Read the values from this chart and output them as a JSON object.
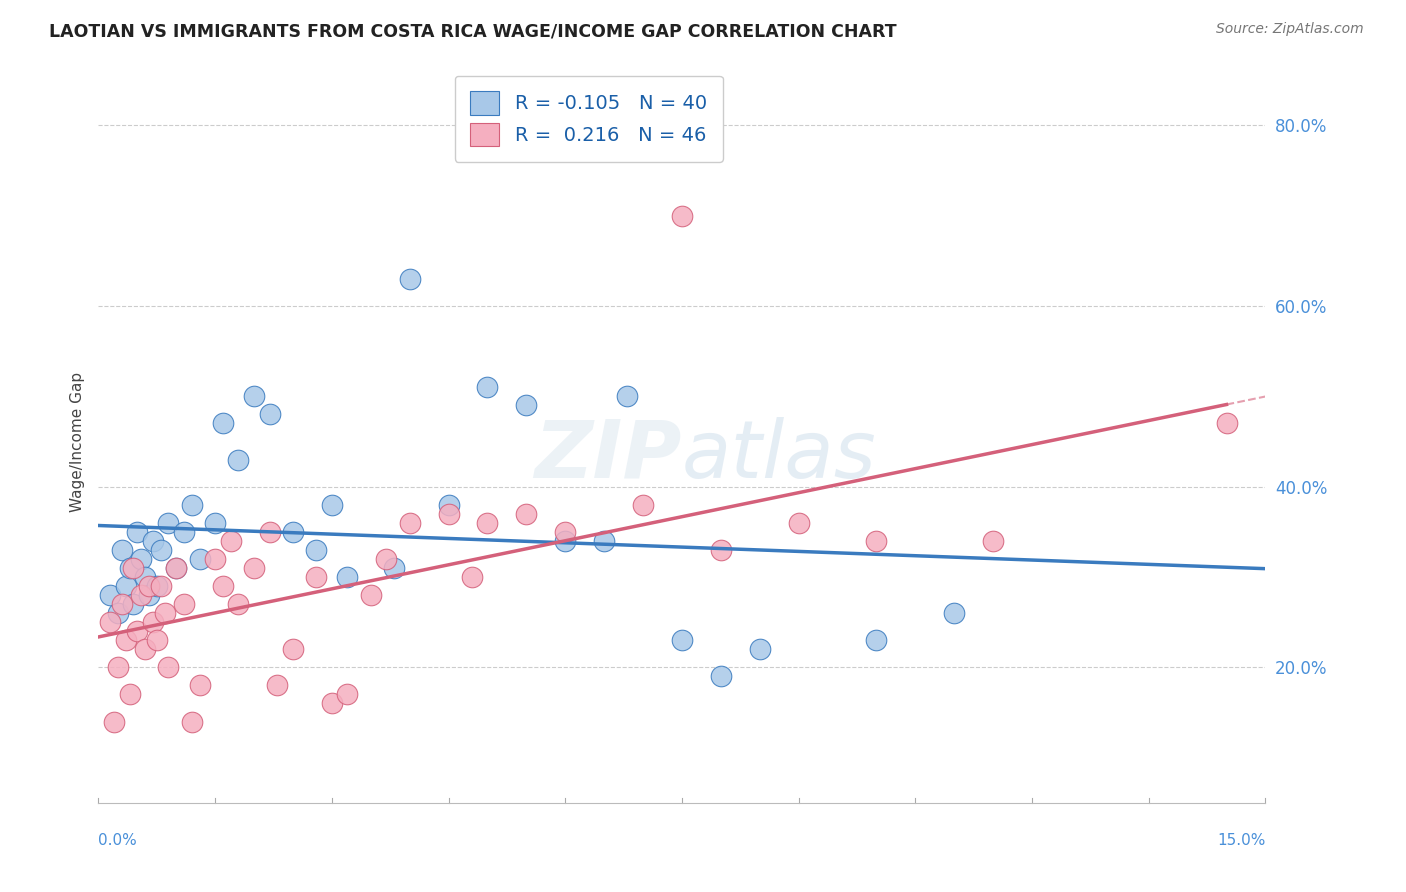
{
  "title": "LAOTIAN VS IMMIGRANTS FROM COSTA RICA WAGE/INCOME GAP CORRELATION CHART",
  "source": "Source: ZipAtlas.com",
  "ylabel": "Wage/Income Gap",
  "xmin": 0.0,
  "xmax": 15.0,
  "ymin": 5.0,
  "ymax": 85.0,
  "yticks": [
    20.0,
    40.0,
    60.0,
    80.0
  ],
  "R_blue": -0.105,
  "N_blue": 40,
  "R_pink": 0.216,
  "N_pink": 46,
  "blue_color": "#a8c8e8",
  "pink_color": "#f5afc0",
  "blue_line_color": "#3a7bbf",
  "pink_line_color": "#d4607a",
  "background_color": "#ffffff",
  "grid_color": "#cccccc",
  "blue_scatter": [
    [
      0.15,
      28.0
    ],
    [
      0.25,
      26.0
    ],
    [
      0.3,
      33.0
    ],
    [
      0.35,
      29.0
    ],
    [
      0.4,
      31.0
    ],
    [
      0.45,
      27.0
    ],
    [
      0.5,
      35.0
    ],
    [
      0.55,
      32.0
    ],
    [
      0.6,
      30.0
    ],
    [
      0.65,
      28.0
    ],
    [
      0.7,
      34.0
    ],
    [
      0.75,
      29.0
    ],
    [
      0.8,
      33.0
    ],
    [
      0.9,
      36.0
    ],
    [
      1.0,
      31.0
    ],
    [
      1.1,
      35.0
    ],
    [
      1.2,
      38.0
    ],
    [
      1.3,
      32.0
    ],
    [
      1.5,
      36.0
    ],
    [
      1.6,
      47.0
    ],
    [
      1.8,
      43.0
    ],
    [
      2.0,
      50.0
    ],
    [
      2.2,
      48.0
    ],
    [
      2.5,
      35.0
    ],
    [
      2.8,
      33.0
    ],
    [
      3.0,
      38.0
    ],
    [
      3.2,
      30.0
    ],
    [
      3.8,
      31.0
    ],
    [
      4.0,
      63.0
    ],
    [
      4.5,
      38.0
    ],
    [
      5.0,
      51.0
    ],
    [
      5.5,
      49.0
    ],
    [
      6.0,
      34.0
    ],
    [
      6.5,
      34.0
    ],
    [
      7.5,
      23.0
    ],
    [
      8.0,
      19.0
    ],
    [
      8.5,
      22.0
    ],
    [
      10.0,
      23.0
    ],
    [
      11.0,
      26.0
    ],
    [
      6.8,
      50.0
    ]
  ],
  "pink_scatter": [
    [
      0.15,
      25.0
    ],
    [
      0.2,
      14.0
    ],
    [
      0.25,
      20.0
    ],
    [
      0.3,
      27.0
    ],
    [
      0.35,
      23.0
    ],
    [
      0.4,
      17.0
    ],
    [
      0.45,
      31.0
    ],
    [
      0.5,
      24.0
    ],
    [
      0.55,
      28.0
    ],
    [
      0.6,
      22.0
    ],
    [
      0.65,
      29.0
    ],
    [
      0.7,
      25.0
    ],
    [
      0.75,
      23.0
    ],
    [
      0.8,
      29.0
    ],
    [
      0.85,
      26.0
    ],
    [
      0.9,
      20.0
    ],
    [
      1.0,
      31.0
    ],
    [
      1.1,
      27.0
    ],
    [
      1.2,
      14.0
    ],
    [
      1.3,
      18.0
    ],
    [
      1.5,
      32.0
    ],
    [
      1.6,
      29.0
    ],
    [
      1.7,
      34.0
    ],
    [
      1.8,
      27.0
    ],
    [
      2.0,
      31.0
    ],
    [
      2.2,
      35.0
    ],
    [
      2.3,
      18.0
    ],
    [
      2.5,
      22.0
    ],
    [
      2.8,
      30.0
    ],
    [
      3.0,
      16.0
    ],
    [
      3.2,
      17.0
    ],
    [
      3.5,
      28.0
    ],
    [
      3.7,
      32.0
    ],
    [
      4.0,
      36.0
    ],
    [
      4.5,
      37.0
    ],
    [
      4.8,
      30.0
    ],
    [
      5.0,
      36.0
    ],
    [
      5.5,
      37.0
    ],
    [
      6.0,
      35.0
    ],
    [
      7.0,
      38.0
    ],
    [
      7.5,
      70.0
    ],
    [
      8.0,
      33.0
    ],
    [
      9.0,
      36.0
    ],
    [
      10.0,
      34.0
    ],
    [
      11.5,
      34.0
    ],
    [
      14.5,
      47.0
    ]
  ]
}
